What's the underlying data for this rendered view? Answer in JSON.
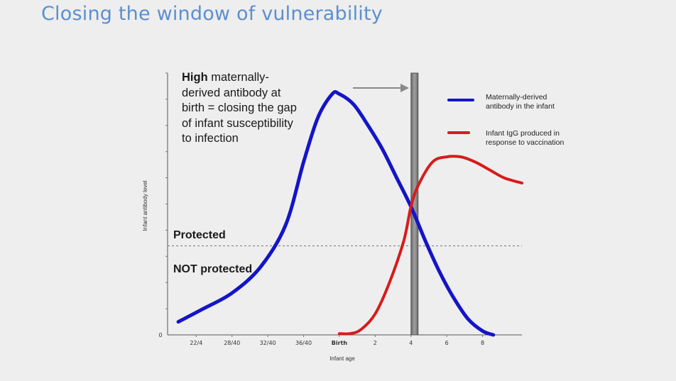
{
  "slide": {
    "title": "Closing the window of vulnerability"
  },
  "annotation": {
    "line1_bold": "High",
    "line1_rest": " maternally-",
    "line2": "derived antibody at",
    "line3": "birth = closing the gap",
    "line4": "of infant susceptibility",
    "line5": "to infection"
  },
  "zones": {
    "protected": "Protected",
    "not_protected": "NOT protected"
  },
  "chart_data": {
    "type": "line",
    "xlabel": "Infant age",
    "ylabel": "Infant antibody level",
    "y_tick_label": "0",
    "ylim": [
      0,
      10
    ],
    "x_categories": [
      "22/4",
      "28/40",
      "32/40",
      "36/40",
      "Birth",
      "2",
      "4",
      "6",
      "8"
    ],
    "x_tick_positions": [
      1,
      2,
      3,
      4,
      5,
      6,
      7,
      8,
      9
    ],
    "xlim": [
      0.2,
      10.1
    ],
    "protection_threshold": 3.4,
    "vertical_band_x": 7.1,
    "series": [
      {
        "name": "Maternally-derived antibody in the infant",
        "color": "#1414c8",
        "x": [
          0.5,
          1.2,
          2.0,
          2.8,
          3.5,
          4.0,
          4.4,
          4.8,
          5.0,
          5.4,
          5.8,
          6.2,
          6.6,
          7.0,
          7.4,
          7.8,
          8.2,
          8.6,
          9.0,
          9.3
        ],
        "y": [
          0.5,
          1.0,
          1.6,
          2.6,
          4.2,
          6.6,
          8.3,
          9.2,
          9.2,
          8.8,
          8.0,
          7.1,
          6.0,
          4.9,
          3.6,
          2.4,
          1.4,
          0.6,
          0.15,
          0.0
        ]
      },
      {
        "name": "Infant IgG produced in response to vaccination",
        "color": "#d81b1b",
        "x": [
          5.0,
          5.3,
          5.6,
          6.0,
          6.4,
          6.8,
          7.0,
          7.2,
          7.6,
          8.0,
          8.4,
          8.8,
          9.2,
          9.6,
          10.1
        ],
        "y": [
          0.05,
          0.05,
          0.2,
          0.8,
          2.0,
          3.6,
          4.9,
          5.7,
          6.6,
          6.8,
          6.8,
          6.6,
          6.3,
          6.0,
          5.8
        ]
      }
    ]
  }
}
